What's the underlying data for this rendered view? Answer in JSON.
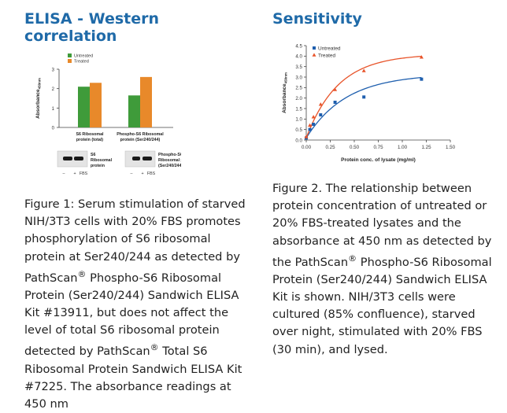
{
  "left": {
    "heading": "ELISA - Western correlation",
    "chart_data": {
      "type": "bar",
      "categories": [
        "S6 Ribosomal protein (total)",
        "Phospho-S6 Ribosomal protein (Ser240/244)"
      ],
      "category_lines": [
        [
          "S6 Ribosomal",
          "protein (total)"
        ],
        [
          "Phospho-S6 Ribosomal",
          "protein (Ser240/244)"
        ]
      ],
      "series": [
        {
          "name": "Untreated",
          "color": "#3f9b3a",
          "values": [
            2.1,
            1.65
          ]
        },
        {
          "name": "Treated",
          "color": "#e8892a",
          "values": [
            2.3,
            2.6
          ]
        }
      ],
      "ylabel": "Absorbance",
      "ylabel_sub": "450nm",
      "yticks": [
        0,
        1,
        2,
        3
      ],
      "ylim": [
        0,
        3
      ]
    },
    "blots": [
      {
        "lines": [
          "S6",
          "Ribosomal",
          "protein"
        ],
        "marks": [
          "–",
          "+",
          "FBS"
        ]
      },
      {
        "lines": [
          "Phospho-S6",
          "Ribosomal protein",
          "(Ser240/244)"
        ],
        "marks": [
          "–",
          "+",
          "FBS"
        ]
      }
    ],
    "caption_parts": [
      "Figure 1: Serum stimulation of starved NIH/3T3 cells with 20% FBS promotes phosphorylation of S6 ribosomal protein at Ser240/244 as detected by PathScan",
      "®",
      " Phospho-S6 Ribosomal Protein (Ser240/244) Sandwich ELISA Kit #13911, but does not affect the level of total S6 ribosomal protein detected by PathScan",
      "®",
      " Total S6 Ribosomal Protein Sandwich ELISA Kit #7225. The absorbance readings at 450 nm"
    ]
  },
  "right": {
    "heading": "Sensitivity",
    "chart_data": {
      "type": "scatter",
      "title": "",
      "xlabel": "Protein conc. of lysate (mg/ml)",
      "ylabel": "Absorbance",
      "ylabel_sub": "450nm",
      "xlim": [
        0,
        1.5
      ],
      "ylim": [
        0,
        4.5
      ],
      "xticks": [
        "0.00",
        "0.25",
        "0.50",
        "0.75",
        "1.00",
        "1.25",
        "1.50"
      ],
      "yticks": [
        "0.0",
        "0.5",
        "1.0",
        "1.5",
        "2.0",
        "2.5",
        "3.0",
        "3.5",
        "4.0",
        "4.5"
      ],
      "series": [
        {
          "name": "Untreated",
          "color": "#1f5fae",
          "marker": "square",
          "x": [
            0.0,
            0.0375,
            0.075,
            0.15,
            0.3,
            0.6,
            1.2
          ],
          "y": [
            0.1,
            0.5,
            0.75,
            1.2,
            1.8,
            2.05,
            2.9
          ]
        },
        {
          "name": "Treated",
          "color": "#e8542a",
          "marker": "triangle",
          "x": [
            0.0,
            0.0375,
            0.075,
            0.15,
            0.3,
            0.6,
            1.2
          ],
          "y": [
            0.15,
            0.7,
            1.1,
            1.7,
            2.4,
            3.3,
            3.95
          ]
        }
      ],
      "fits": [
        {
          "series": "Untreated",
          "ymax": 3.15,
          "k": 2.4
        },
        {
          "series": "Treated",
          "ymax": 4.1,
          "k": 3.0
        }
      ]
    },
    "caption_parts": [
      "Figure 2. The relationship between protein concentration of untreated or 20% FBS-treated lysates and the absorbance at 450 nm as detected by the PathScan",
      "®",
      " Phospho-S6 Ribosomal Protein (Ser240/244) Sandwich ELISA Kit is shown. NIH/3T3 cells were cultured (85% confluence), starved over night, stimulated with 20% FBS (30 min), and lysed."
    ]
  }
}
